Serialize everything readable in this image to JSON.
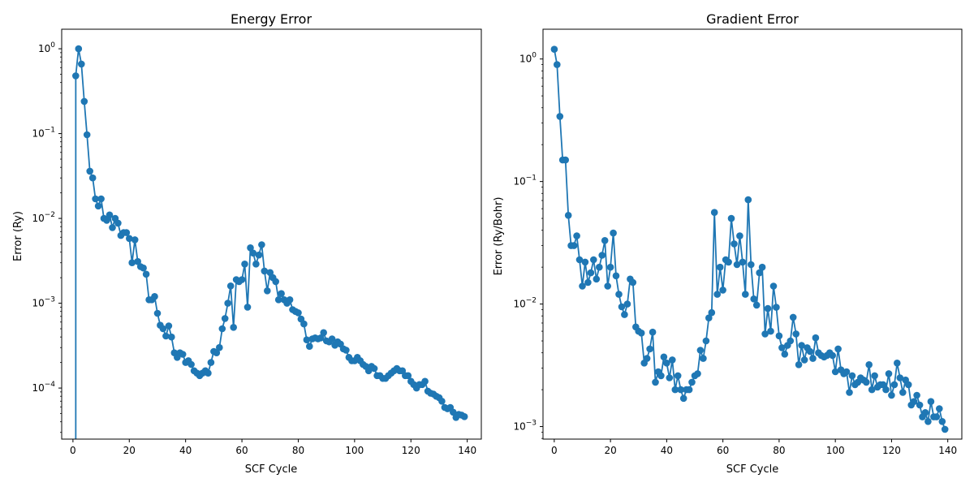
{
  "chart_data": [
    {
      "type": "line",
      "title": "Energy Error",
      "xlabel": "SCF Cycle",
      "ylabel": "Error (Ry)",
      "yscale": "log",
      "xlim": [
        -4,
        145
      ],
      "ylim": [
        2.5e-05,
        1.7
      ],
      "xticks": [
        0,
        20,
        40,
        60,
        80,
        100,
        120,
        140
      ],
      "xtick_labels": [
        "0",
        "20",
        "40",
        "60",
        "80",
        "100",
        "120",
        "140"
      ],
      "yticks": [
        0.0001,
        0.001,
        0.01,
        0.1,
        1
      ],
      "ytick_labels": [
        [
          "10",
          "−4"
        ],
        [
          "10",
          "−3"
        ],
        [
          "10",
          "−2"
        ],
        [
          "10",
          "−1"
        ],
        [
          "10",
          "0"
        ]
      ],
      "color": "#1f77b4",
      "grid": false,
      "line_start": [
        1,
        0
      ],
      "series": [
        {
          "x": [
            1,
            2,
            3,
            4,
            5,
            6,
            7,
            8,
            9,
            10,
            11,
            12,
            13,
            14,
            15,
            16,
            17,
            18,
            19,
            20,
            21,
            22,
            23,
            24,
            25,
            26,
            27,
            28,
            29,
            30,
            31,
            32,
            33,
            34,
            35,
            36,
            37,
            38,
            39,
            40,
            41,
            42,
            43,
            44,
            45,
            46,
            47,
            48,
            49,
            50,
            51,
            52,
            53,
            54,
            55,
            56,
            57,
            58,
            59,
            60,
            61,
            62,
            63,
            64,
            65,
            66,
            67,
            68,
            69,
            70,
            71,
            72,
            73,
            74,
            75,
            76,
            77,
            78,
            79,
            80,
            81,
            82,
            83,
            84,
            85,
            86,
            87,
            88,
            89,
            90,
            91,
            92,
            93,
            94,
            95,
            96,
            97,
            98,
            99,
            100,
            101,
            102,
            103,
            104,
            105,
            106,
            107,
            108,
            109,
            110,
            111,
            112,
            113,
            114,
            115,
            116,
            117,
            118,
            119,
            120,
            121,
            122,
            123,
            124,
            125,
            126,
            127,
            128,
            129,
            130,
            131,
            132,
            133,
            134,
            135,
            136,
            137,
            138,
            139
          ],
          "y": [
            0.48,
            1.0,
            0.66,
            0.24,
            0.097,
            0.036,
            0.03,
            0.017,
            0.014,
            0.017,
            0.01,
            0.0095,
            0.011,
            0.0078,
            0.01,
            0.0088,
            0.0063,
            0.0068,
            0.0068,
            0.0058,
            0.003,
            0.0056,
            0.0031,
            0.0027,
            0.0026,
            0.0022,
            0.0011,
            0.0011,
            0.0012,
            0.00076,
            0.00055,
            0.0005,
            0.00041,
            0.00054,
            0.0004,
            0.00026,
            0.00023,
            0.00026,
            0.00025,
            0.0002,
            0.00021,
            0.00019,
            0.00016,
            0.00015,
            0.00014,
            0.00015,
            0.00016,
            0.00015,
            0.0002,
            0.00027,
            0.00026,
            0.0003,
            0.0005,
            0.00066,
            0.001,
            0.0016,
            0.00052,
            0.0019,
            0.0018,
            0.0019,
            0.0029,
            0.0009,
            0.0045,
            0.0039,
            0.0029,
            0.0037,
            0.0049,
            0.0024,
            0.0014,
            0.0023,
            0.002,
            0.0018,
            0.0011,
            0.0013,
            0.0011,
            0.001,
            0.0011,
            0.00084,
            0.0008,
            0.00077,
            0.00065,
            0.00057,
            0.00037,
            0.00031,
            0.00038,
            0.00039,
            0.00038,
            0.00039,
            0.00045,
            0.00036,
            0.00035,
            0.00038,
            0.00032,
            0.00035,
            0.00033,
            0.00029,
            0.00028,
            0.00023,
            0.00021,
            0.00021,
            0.00023,
            0.00021,
            0.00019,
            0.00018,
            0.00016,
            0.00018,
            0.00017,
            0.00014,
            0.00014,
            0.00013,
            0.00013,
            0.00014,
            0.00015,
            0.00016,
            0.00017,
            0.00016,
            0.00016,
            0.00014,
            0.00014,
            0.00012,
            0.00011,
            0.0001,
            0.00011,
            0.00011,
            0.00012,
            9.2e-05,
            8.7e-05,
            8.5e-05,
            8e-05,
            7.7e-05,
            7e-05,
            5.9e-05,
            5.7e-05,
            5.9e-05,
            5.2e-05,
            4.5e-05,
            4.9e-05,
            4.8e-05,
            4.6e-05
          ]
        }
      ]
    },
    {
      "type": "line",
      "title": "Gradient Error",
      "xlabel": "SCF Cycle",
      "ylabel": "Error (Ry/Bohr)",
      "yscale": "log",
      "xlim": [
        -4,
        145
      ],
      "ylim": [
        0.00079,
        1.75
      ],
      "xticks": [
        0,
        20,
        40,
        60,
        80,
        100,
        120,
        140
      ],
      "xtick_labels": [
        "0",
        "20",
        "40",
        "60",
        "80",
        "100",
        "120",
        "140"
      ],
      "yticks": [
        0.001,
        0.01,
        0.1,
        1
      ],
      "ytick_labels": [
        [
          "10",
          "−3"
        ],
        [
          "10",
          "−2"
        ],
        [
          "10",
          "−1"
        ],
        [
          "10",
          "0"
        ]
      ],
      "color": "#1f77b4",
      "grid": false,
      "series": [
        {
          "x": [
            0,
            1,
            2,
            3,
            4,
            5,
            6,
            7,
            8,
            9,
            10,
            11,
            12,
            13,
            14,
            15,
            16,
            17,
            18,
            19,
            20,
            21,
            22,
            23,
            24,
            25,
            26,
            27,
            28,
            29,
            30,
            31,
            32,
            33,
            34,
            35,
            36,
            37,
            38,
            39,
            40,
            41,
            42,
            43,
            44,
            45,
            46,
            47,
            48,
            49,
            50,
            51,
            52,
            53,
            54,
            55,
            56,
            57,
            58,
            59,
            60,
            61,
            62,
            63,
            64,
            65,
            66,
            67,
            68,
            69,
            70,
            71,
            72,
            73,
            74,
            75,
            76,
            77,
            78,
            79,
            80,
            81,
            82,
            83,
            84,
            85,
            86,
            87,
            88,
            89,
            90,
            91,
            92,
            93,
            94,
            95,
            96,
            97,
            98,
            99,
            100,
            101,
            102,
            103,
            104,
            105,
            106,
            107,
            108,
            109,
            110,
            111,
            112,
            113,
            114,
            115,
            116,
            117,
            118,
            119,
            120,
            121,
            122,
            123,
            124,
            125,
            126,
            127,
            128,
            129,
            130,
            131,
            132,
            133,
            134,
            135,
            136,
            137,
            138,
            139
          ],
          "y": [
            1.2,
            0.9,
            0.34,
            0.15,
            0.15,
            0.053,
            0.03,
            0.03,
            0.036,
            0.023,
            0.014,
            0.022,
            0.015,
            0.018,
            0.023,
            0.016,
            0.02,
            0.025,
            0.033,
            0.014,
            0.02,
            0.038,
            0.017,
            0.012,
            0.0095,
            0.0082,
            0.01,
            0.016,
            0.015,
            0.0065,
            0.006,
            0.0058,
            0.0033,
            0.0036,
            0.0043,
            0.0059,
            0.0023,
            0.0028,
            0.0026,
            0.0037,
            0.0033,
            0.0025,
            0.0035,
            0.002,
            0.0026,
            0.002,
            0.0017,
            0.002,
            0.002,
            0.0023,
            0.0026,
            0.0027,
            0.0042,
            0.0036,
            0.005,
            0.0077,
            0.0085,
            0.056,
            0.012,
            0.02,
            0.013,
            0.023,
            0.022,
            0.05,
            0.031,
            0.021,
            0.036,
            0.022,
            0.012,
            0.071,
            0.021,
            0.011,
            0.0098,
            0.018,
            0.02,
            0.0057,
            0.0092,
            0.006,
            0.014,
            0.0094,
            0.0055,
            0.0044,
            0.0039,
            0.0046,
            0.005,
            0.0078,
            0.0057,
            0.0032,
            0.0046,
            0.0035,
            0.0044,
            0.0041,
            0.0036,
            0.0053,
            0.004,
            0.0038,
            0.0037,
            0.0038,
            0.004,
            0.0038,
            0.0028,
            0.0043,
            0.0029,
            0.0027,
            0.0028,
            0.0019,
            0.0026,
            0.0022,
            0.0023,
            0.0025,
            0.0024,
            0.0023,
            0.0032,
            0.002,
            0.0026,
            0.0021,
            0.0022,
            0.0022,
            0.002,
            0.0027,
            0.0018,
            0.0022,
            0.0033,
            0.0025,
            0.0019,
            0.0024,
            0.0022,
            0.0015,
            0.0016,
            0.0018,
            0.0015,
            0.0012,
            0.0013,
            0.0011,
            0.0016,
            0.0012,
            0.0012,
            0.0014,
            0.0011,
            0.00095
          ]
        }
      ]
    }
  ]
}
